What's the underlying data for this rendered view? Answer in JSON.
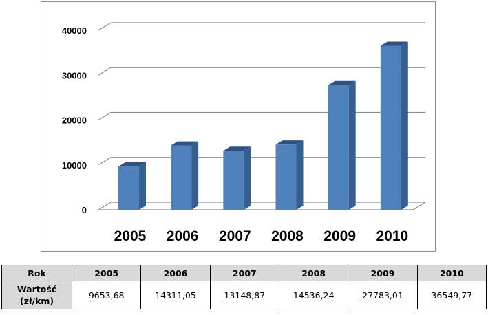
{
  "chart_data": {
    "type": "bar",
    "style": "3d-column",
    "categories": [
      "2005",
      "2006",
      "2007",
      "2008",
      "2009",
      "2010"
    ],
    "values": [
      9653.68,
      14311.05,
      13148.87,
      14536.24,
      27783.01,
      36549.77
    ],
    "ylim": [
      0,
      40000
    ],
    "yticks": [
      "0",
      "10000",
      "20000",
      "30000",
      "40000"
    ],
    "grid": true,
    "legend": "none",
    "colors": {
      "bar_front": "#4f81bd",
      "bar_side": "#365f91",
      "bar_top": "#2e5286",
      "grid": "#8c8c8c"
    }
  },
  "table": {
    "header_label": "Rok",
    "row_label_line1": "Wartość",
    "row_label_line2": "(zł/km)",
    "years": [
      "2005",
      "2006",
      "2007",
      "2008",
      "2009",
      "2010"
    ],
    "values": [
      "9653,68",
      "14311,05",
      "13148,87",
      "14536,24",
      "27783,01",
      "36549,77"
    ]
  }
}
